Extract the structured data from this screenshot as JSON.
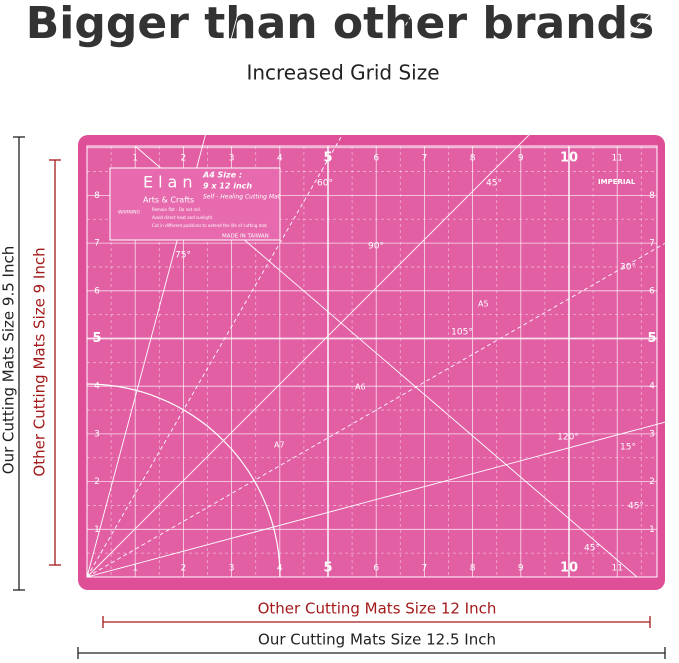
{
  "header": {
    "title": "Bigger than other brands",
    "subtitle": "Increased Grid Size"
  },
  "dimensions": {
    "our_height": "Our Cutting Mats Size 9.5 Inch",
    "other_height": "Other Cutting Mats Size 9 Inch",
    "other_width": "Other Cutting Mats Size 12 Inch",
    "our_width": "Our Cutting Mats Size 12.5 Inch"
  },
  "mat": {
    "brand": "Elan",
    "brand_sub": "Arts & Crafts",
    "size": "A4 Size :",
    "size_inch": "9 x 12 inch",
    "product": "Self - Healing Cutting Mat",
    "warning": "WARNING",
    "notes": [
      "Remain flat - Do not roll.",
      "Avoid direct heat and sunlight.",
      "Cut in different positions to extend the life of cutting mat."
    ],
    "origin": "MADE IN TAIWAN",
    "system": "IMPERIAL",
    "top_ruler": [
      "1",
      "2",
      "3",
      "4",
      "5",
      "6",
      "7",
      "8",
      "9",
      "10",
      "11"
    ],
    "side_ruler": [
      "1",
      "2",
      "3",
      "4",
      "5",
      "6",
      "7",
      "8"
    ],
    "angles": [
      "60°",
      "45°",
      "75°",
      "90°",
      "30°",
      "105°",
      "120°",
      "15°",
      "45°",
      "45°"
    ],
    "paper_sizes": [
      "A5",
      "A6",
      "A7"
    ]
  }
}
